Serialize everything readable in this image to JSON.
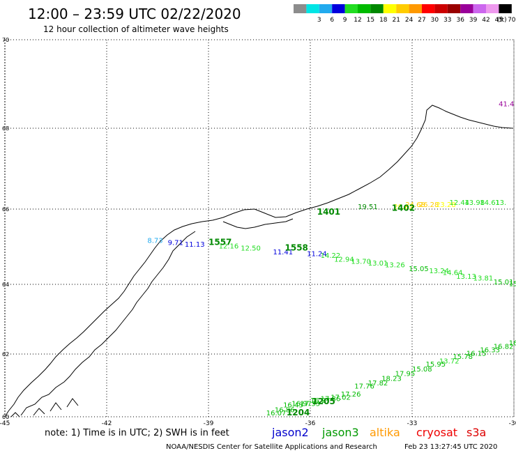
{
  "header": {
    "title": "12:00 – 23:59 UTC 02/22/2020",
    "subtitle": "12 hour collection of altimeter wave heights"
  },
  "legend": {
    "unit": "(ft)",
    "bins": [
      {
        "label": "",
        "color": "#8c8c8c"
      },
      {
        "label": "3",
        "color": "#00e5e5"
      },
      {
        "label": "6",
        "color": "#22aaee"
      },
      {
        "label": "9",
        "color": "#0000dd"
      },
      {
        "label": "12",
        "color": "#22dd22"
      },
      {
        "label": "15",
        "color": "#00bb00"
      },
      {
        "label": "18",
        "color": "#008800"
      },
      {
        "label": "21",
        "color": "#ffff00"
      },
      {
        "label": "24",
        "color": "#ffcc00"
      },
      {
        "label": "27",
        "color": "#ff9900"
      },
      {
        "label": "30",
        "color": "#ff0000"
      },
      {
        "label": "33",
        "color": "#cc0000"
      },
      {
        "label": "36",
        "color": "#990000"
      },
      {
        "label": "39",
        "color": "#990099"
      },
      {
        "label": "42",
        "color": "#cc66ee"
      },
      {
        "label": "45",
        "color": "#ee99ee"
      },
      {
        "label": "70",
        "color": "#000000"
      }
    ]
  },
  "axes": {
    "lon_labels": [
      "-45",
      "-42",
      "-39",
      "-36",
      "-33",
      "-30"
    ],
    "lat_labels": [
      "70",
      "68",
      "66",
      "64",
      "62",
      "60"
    ]
  },
  "footer": {
    "note": "note: 1) Time is in UTC; 2) SWH is in feet",
    "satellites": [
      {
        "name": "jason2",
        "color": "#0000cc"
      },
      {
        "name": "jason3",
        "color": "#009900"
      },
      {
        "name": "altika",
        "color": "#ff9900"
      },
      {
        "name": "cryosat",
        "color": "#ee0000"
      },
      {
        "name": "s3a",
        "color": "#dd0000"
      }
    ],
    "credit": "NOAA/NESDIS Center for Satellite Applications and Research",
    "timestamp": "Feb 23 13:27:45 UTC 2020"
  },
  "tracks": [
    {
      "name": "track-1401-1402",
      "points": [
        {
          "t": "19.51",
          "lon": -34.6,
          "lat": 66.0,
          "c": "#008800"
        },
        {
          "t": "20.62",
          "lon": -33.55,
          "lat": 66.0,
          "c": "#ffff00"
        },
        {
          "t": "24.68",
          "lon": -33.2,
          "lat": 66.05,
          "c": "#ffcc00"
        },
        {
          "t": "26.28",
          "lon": -32.8,
          "lat": 66.05,
          "c": "#ffcc00"
        },
        {
          "t": "23.28",
          "lon": -32.3,
          "lat": 66.05,
          "c": "#ffff00"
        },
        {
          "t": "12.44",
          "lon": -31.9,
          "lat": 66.1,
          "c": "#22dd22"
        },
        {
          "t": "13.98",
          "lon": -31.45,
          "lat": 66.1,
          "c": "#22dd22"
        },
        {
          "t": "14.61",
          "lon": -31.0,
          "lat": 66.1,
          "c": "#22dd22"
        },
        {
          "t": "13.",
          "lon": -30.55,
          "lat": 66.1,
          "c": "#22dd22"
        }
      ],
      "times": [
        {
          "t": "1401",
          "lon": -35.8,
          "lat": 65.85,
          "c": "#008800"
        },
        {
          "t": "1402",
          "lon": -33.6,
          "lat": 65.95,
          "c": "#008800"
        }
      ]
    },
    {
      "name": "track-1557-1558",
      "points": [
        {
          "t": "8.73",
          "lon": -40.8,
          "lat": 65.1,
          "c": "#22aaee"
        },
        {
          "t": "9.71",
          "lon": -40.2,
          "lat": 65.05,
          "c": "#0000dd"
        },
        {
          "t": "11.13",
          "lon": -39.7,
          "lat": 65.0,
          "c": "#0000dd"
        },
        {
          "t": "12.16",
          "lon": -38.7,
          "lat": 64.95,
          "c": "#22dd22"
        },
        {
          "t": "12.50",
          "lon": -38.05,
          "lat": 64.9,
          "c": "#22dd22"
        },
        {
          "t": "11.41",
          "lon": -37.1,
          "lat": 64.8,
          "c": "#0000dd"
        },
        {
          "t": "11.24",
          "lon": -36.1,
          "lat": 64.75,
          "c": "#0000dd"
        },
        {
          "t": "14.22",
          "lon": -35.7,
          "lat": 64.7,
          "c": "#22dd22"
        },
        {
          "t": "12.94",
          "lon": -35.3,
          "lat": 64.6,
          "c": "#22dd22"
        },
        {
          "t": "13.70",
          "lon": -34.8,
          "lat": 64.55,
          "c": "#22dd22"
        },
        {
          "t": "13.01",
          "lon": -34.3,
          "lat": 64.5,
          "c": "#22dd22"
        },
        {
          "t": "13.26",
          "lon": -33.8,
          "lat": 64.45,
          "c": "#22dd22"
        },
        {
          "t": "15.05",
          "lon": -33.1,
          "lat": 64.35,
          "c": "#00bb00"
        },
        {
          "t": "13.24",
          "lon": -32.5,
          "lat": 64.3,
          "c": "#22dd22"
        },
        {
          "t": "14.64",
          "lon": -32.1,
          "lat": 64.25,
          "c": "#22dd22"
        },
        {
          "t": "13.13",
          "lon": -31.7,
          "lat": 64.15,
          "c": "#22dd22"
        },
        {
          "t": "13.81",
          "lon": -31.2,
          "lat": 64.1,
          "c": "#22dd22"
        },
        {
          "t": "15.01",
          "lon": -30.6,
          "lat": 64.0,
          "c": "#00bb00"
        },
        {
          "t": "15.",
          "lon": -30.15,
          "lat": 63.95,
          "c": "#00bb00"
        }
      ],
      "times": [
        {
          "t": "1557",
          "lon": -39.0,
          "lat": 65.05,
          "c": "#008800"
        },
        {
          "t": "1558",
          "lon": -36.75,
          "lat": 64.9,
          "c": "#008800"
        }
      ]
    },
    {
      "name": "track-1204-1205",
      "points": [
        {
          "t": "16.07",
          "lon": -37.3,
          "lat": 60.05,
          "c": "#00bb00"
        },
        {
          "t": "16.86",
          "lon": -37.05,
          "lat": 60.15,
          "c": "#00bb00"
        },
        {
          "t": "16.43",
          "lon": -36.8,
          "lat": 60.3,
          "c": "#00bb00"
        },
        {
          "t": "16.97",
          "lon": -36.55,
          "lat": 60.35,
          "c": "#00bb00"
        },
        {
          "t": "17.33",
          "lon": -36.3,
          "lat": 60.35,
          "c": "#00bb00"
        },
        {
          "t": "16.27",
          "lon": -36.0,
          "lat": 60.45,
          "c": "#00bb00"
        },
        {
          "t": "17.86",
          "lon": -35.7,
          "lat": 60.5,
          "c": "#00bb00"
        },
        {
          "t": "17.02",
          "lon": -35.4,
          "lat": 60.55,
          "c": "#00bb00"
        },
        {
          "t": "17.26",
          "lon": -35.1,
          "lat": 60.65,
          "c": "#00bb00"
        },
        {
          "t": "17.76",
          "lon": -34.7,
          "lat": 60.9,
          "c": "#00bb00"
        },
        {
          "t": "17.82",
          "lon": -34.3,
          "lat": 61.0,
          "c": "#00bb00"
        },
        {
          "t": "18.23",
          "lon": -33.9,
          "lat": 61.15,
          "c": "#00bb00"
        },
        {
          "t": "17.95",
          "lon": -33.5,
          "lat": 61.3,
          "c": "#00bb00"
        },
        {
          "t": "15.08",
          "lon": -33.0,
          "lat": 61.45,
          "c": "#00bb00"
        },
        {
          "t": "15.95",
          "lon": -32.6,
          "lat": 61.6,
          "c": "#00bb00"
        },
        {
          "t": "13.72",
          "lon": -32.2,
          "lat": 61.7,
          "c": "#22dd22"
        },
        {
          "t": "15.78",
          "lon": -31.8,
          "lat": 61.85,
          "c": "#00bb00"
        },
        {
          "t": "16.15",
          "lon": -31.4,
          "lat": 61.95,
          "c": "#00bb00"
        },
        {
          "t": "16.33",
          "lon": -31.0,
          "lat": 62.05,
          "c": "#00bb00"
        },
        {
          "t": "16.82",
          "lon": -30.6,
          "lat": 62.15,
          "c": "#00bb00"
        },
        {
          "t": "16.",
          "lon": -30.15,
          "lat": 62.25,
          "c": "#00bb00"
        }
      ],
      "times": [
        {
          "t": "1205",
          "lon": -35.95,
          "lat": 60.4,
          "c": "#008800"
        },
        {
          "t": "1204",
          "lon": -36.7,
          "lat": 60.05,
          "c": "#008800"
        }
      ]
    },
    {
      "name": "track-edge",
      "points": [
        {
          "t": "41.4",
          "lon": -30.45,
          "lat": 68.5,
          "c": "#990099"
        }
      ],
      "times": []
    }
  ]
}
